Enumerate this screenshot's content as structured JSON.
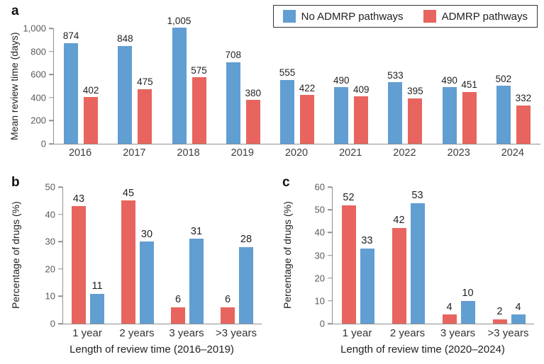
{
  "colors": {
    "no-admrp": "#619ed2",
    "admrp": "#e7655e",
    "axis": "#8f8f8f",
    "tick_label": "#595959",
    "value_label": "#222222"
  },
  "panels": {
    "a": {
      "letter": "a"
    },
    "b": {
      "letter": "b"
    },
    "c": {
      "letter": "c"
    }
  },
  "legend": {
    "items": [
      {
        "label": "No ADMRP pathways",
        "key": "no-admrp"
      },
      {
        "label": "ADMRP pathways",
        "key": "admrp"
      }
    ]
  },
  "chart_data": [
    {
      "id": "a",
      "type": "bar",
      "title": "",
      "xlabel": "",
      "ylabel": "Mean review time (days)",
      "categories": [
        "2016",
        "2017",
        "2018",
        "2019",
        "2020",
        "2021",
        "2022",
        "2023",
        "2024"
      ],
      "series": [
        {
          "name": "No ADMRP pathways",
          "key": "no-admrp",
          "values": [
            874,
            848,
            1005,
            708,
            555,
            490,
            533,
            490,
            502
          ],
          "labels": [
            "874",
            "848",
            "1,005",
            "708",
            "555",
            "490",
            "533",
            "490",
            "502"
          ]
        },
        {
          "name": "ADMRP pathways",
          "key": "admrp",
          "values": [
            402,
            475,
            575,
            380,
            422,
            409,
            395,
            451,
            332
          ],
          "labels": [
            "402",
            "475",
            "575",
            "380",
            "422",
            "409",
            "395",
            "451",
            "332"
          ]
        }
      ],
      "ylim": [
        0,
        1000
      ],
      "yticks": [
        0,
        200,
        400,
        600,
        800,
        1000
      ],
      "ytick_labels": [
        "0",
        "200",
        "400",
        "600",
        "800",
        "1,000"
      ],
      "grid": false,
      "legend_position": "top-right"
    },
    {
      "id": "b",
      "type": "bar",
      "title": "",
      "xlabel": "Length of review time (2016–2019)",
      "ylabel": "Percentage of drugs (%)",
      "categories": [
        "1 year",
        "2 years",
        "3 years",
        ">3 years"
      ],
      "series": [
        {
          "name": "ADMRP pathways",
          "key": "admrp",
          "values": [
            43,
            45,
            6,
            6
          ],
          "labels": [
            "43",
            "45",
            "6",
            "6"
          ]
        },
        {
          "name": "No ADMRP pathways",
          "key": "no-admrp",
          "values": [
            11,
            30,
            31,
            28
          ],
          "labels": [
            "11",
            "30",
            "31",
            "28"
          ]
        }
      ],
      "ylim": [
        0,
        50
      ],
      "yticks": [
        0,
        10,
        20,
        30,
        40,
        50
      ],
      "ytick_labels": [
        "0",
        "10",
        "20",
        "30",
        "40",
        "50"
      ],
      "grid": false,
      "legend_position": "none"
    },
    {
      "id": "c",
      "type": "bar",
      "title": "",
      "xlabel": "Length of review time (2020–2024)",
      "ylabel": "Percentage of drugs (%)",
      "categories": [
        "1 year",
        "2 years",
        "3 years",
        ">3 years"
      ],
      "series": [
        {
          "name": "ADMRP pathways",
          "key": "admrp",
          "values": [
            52,
            42,
            4,
            2
          ],
          "labels": [
            "52",
            "42",
            "4",
            "2"
          ]
        },
        {
          "name": "No ADMRP pathways",
          "key": "no-admrp",
          "values": [
            33,
            53,
            10,
            4
          ],
          "labels": [
            "33",
            "53",
            "10",
            "4"
          ]
        }
      ],
      "ylim": [
        0,
        60
      ],
      "yticks": [
        0,
        10,
        20,
        30,
        40,
        50,
        60
      ],
      "ytick_labels": [
        "0",
        "10",
        "20",
        "30",
        "40",
        "50",
        "60"
      ],
      "grid": false,
      "legend_position": "none"
    }
  ]
}
